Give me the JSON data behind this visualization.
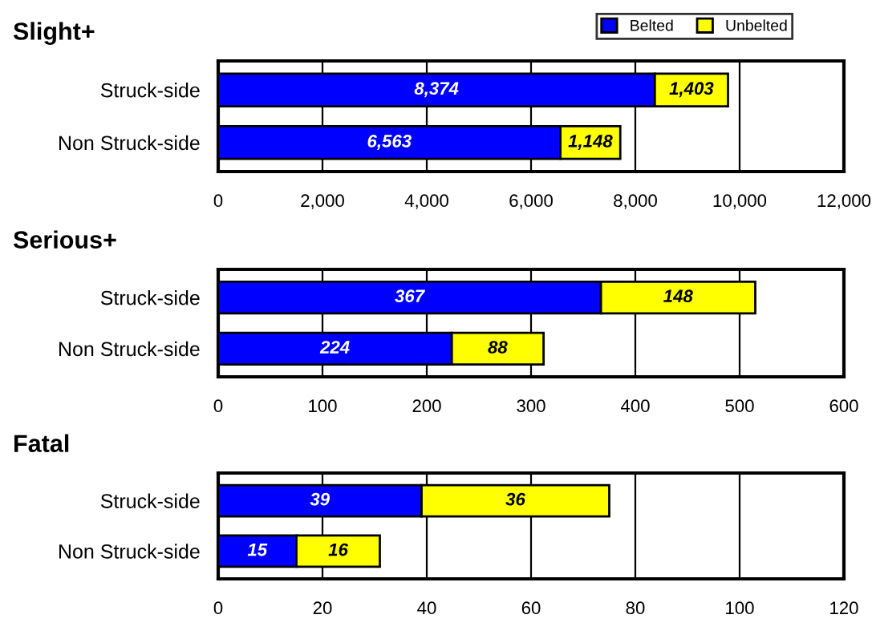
{
  "chart_data": [
    {
      "type": "bar",
      "orientation": "horizontal",
      "stacked": true,
      "title": "Slight+",
      "categories": [
        "Struck-side",
        "Non Struck-side"
      ],
      "series": [
        {
          "name": "Belted",
          "color": "#0000ff",
          "values": [
            8374,
            6563
          ],
          "value_labels": [
            "8,374",
            "6,563"
          ]
        },
        {
          "name": "Unbelted",
          "color": "#ffff00",
          "values": [
            1403,
            1148
          ],
          "value_labels": [
            "1,403",
            "1,148"
          ]
        }
      ],
      "xlim": [
        0,
        12000
      ],
      "xticks": [
        {
          "value": 0,
          "label": "0"
        },
        {
          "value": 2000,
          "label": "2,000"
        },
        {
          "value": 4000,
          "label": "4,000"
        },
        {
          "value": 6000,
          "label": "6,000"
        },
        {
          "value": 8000,
          "label": "8,000"
        },
        {
          "value": 10000,
          "label": "10,000"
        },
        {
          "value": 12000,
          "label": "12,000"
        }
      ],
      "grid": "x",
      "legend": "top right"
    },
    {
      "type": "bar",
      "orientation": "horizontal",
      "stacked": true,
      "title": "Serious+",
      "categories": [
        "Struck-side",
        "Non Struck-side"
      ],
      "series": [
        {
          "color": "#0000ff",
          "values": [
            367,
            224
          ]
        },
        {
          "color": "#ffff00",
          "values": [
            148,
            88
          ]
        }
      ],
      "xlim": [
        0,
        600
      ],
      "xticks": [
        0,
        100,
        200,
        300,
        400,
        500,
        600
      ],
      "grid": "x",
      "data_labels": true
    },
    {
      "type": "bar",
      "orientation": "horizontal",
      "stacked": true,
      "title": "Fatal",
      "categories": [
        "Struck-side",
        "Non Struck-side"
      ],
      "series": [
        {
          "color": "#0000ff",
          "values": [
            39,
            15
          ]
        },
        {
          "color": "#ffff00",
          "values": [
            36,
            16
          ]
        }
      ],
      "xlim": [
        0,
        120
      ],
      "xticks": [
        0,
        20,
        40,
        60,
        80,
        100,
        120
      ],
      "grid": "x",
      "data_labels": true
    }
  ]
}
